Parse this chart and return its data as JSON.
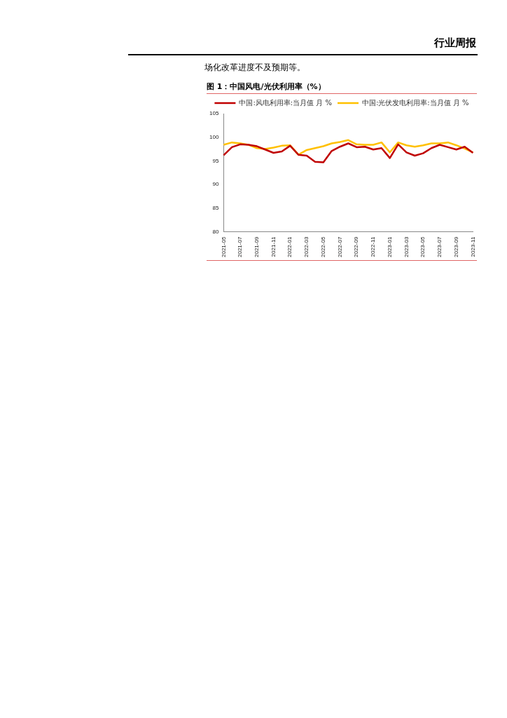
{
  "chart_data": {
    "type": "line",
    "title": "图 1：中国风电/光伏利用率（%）",
    "annotations": [
      "行业周报",
      "场化改革进度不及预期等。"
    ],
    "categories": [
      "2021-05",
      null,
      "2021-07",
      null,
      "2021-09",
      null,
      "2021-11",
      null,
      "2022-01",
      null,
      "2022-03",
      null,
      "2022-05",
      null,
      "2022-07",
      null,
      "2022-09",
      null,
      "2022-11",
      null,
      "2023-01",
      null,
      "2023-03",
      null,
      "2023-05",
      null,
      "2023-07",
      null,
      "2023-09",
      null,
      "2023-11"
    ],
    "series": [
      {
        "name": "中国:风电利用率:当月值 月 %",
        "color": "#c00000",
        "values": [
          96.2,
          97.9,
          98.5,
          98.4,
          98.1,
          97.4,
          96.7,
          97.0,
          98.2,
          96.3,
          96.1,
          94.8,
          94.7,
          97.1,
          98.0,
          98.7,
          97.9,
          98.0,
          97.4,
          97.7,
          95.6,
          98.5,
          96.8,
          96.1,
          96.6,
          97.7,
          98.4,
          97.9,
          97.4,
          98.0,
          96.7
        ]
      },
      {
        "name": "中国:光伏发电利用率:当月值 月 %",
        "color": "#ffc000",
        "values": [
          98.4,
          98.9,
          98.7,
          98.4,
          97.7,
          97.5,
          97.8,
          98.2,
          98.3,
          96.3,
          97.3,
          97.7,
          98.1,
          98.7,
          99.0,
          99.4,
          98.5,
          98.4,
          98.4,
          98.9,
          96.8,
          98.9,
          98.3,
          98.0,
          98.3,
          98.7,
          98.7,
          98.9,
          98.3,
          97.6,
          96.8
        ]
      }
    ],
    "ylim": [
      80,
      105
    ],
    "yticks": [
      80,
      85,
      90,
      95,
      100,
      105
    ],
    "grid": false,
    "legend": "top",
    "marker": "none",
    "line_style": "solid"
  }
}
